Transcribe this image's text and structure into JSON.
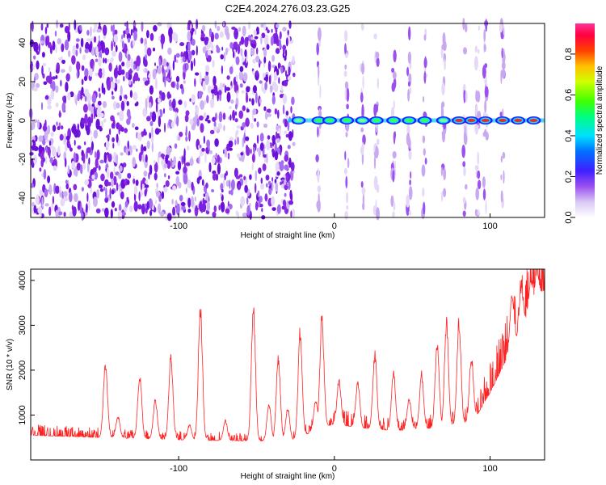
{
  "page_title": "C2E4.2024.276.03.23.G25",
  "chart_data": [
    {
      "type": "heatmap",
      "title": "C2E4.2024.276.03.23.G25",
      "xlabel": "Height of straight line (km)",
      "ylabel": "Frequency (Hz)",
      "xlim": [
        -195,
        135
      ],
      "ylim": [
        -50,
        50
      ],
      "x_ticks": [
        -100,
        0,
        100
      ],
      "x_tick_labels": [
        "-100",
        "0",
        "100"
      ],
      "y_ticks": [
        -40,
        -20,
        0,
        20,
        40
      ],
      "y_tick_labels": [
        "-40",
        "-20",
        "0",
        "20",
        "40"
      ],
      "colorbar": {
        "label": "Normalized spectral amplitude",
        "range": [
          0.0,
          0.95
        ],
        "ticks": [
          0.0,
          0.2,
          0.4,
          0.6,
          0.8
        ],
        "tick_labels": [
          "0.0",
          "0.2",
          "0.4",
          "0.6",
          "0.8"
        ],
        "colors": [
          "#ffffff",
          "#c8a8f0",
          "#8a2be2",
          "#2020ff",
          "#00e0ff",
          "#00ff40",
          "#ffff00",
          "#ff8000",
          "#ff0000",
          "#ff3399"
        ]
      },
      "noise_region_x": [
        -195,
        -30
      ],
      "signal_track": {
        "frequency": 0,
        "x_range": [
          -30,
          135
        ],
        "blobs": [
          {
            "x": -23,
            "amplitude": 0.35
          },
          {
            "x": -10,
            "amplitude": 0.5
          },
          {
            "x": -3,
            "amplitude": 0.6
          },
          {
            "x": 8,
            "amplitude": 0.55
          },
          {
            "x": 18,
            "amplitude": 0.45
          },
          {
            "x": 27,
            "amplitude": 0.5
          },
          {
            "x": 38,
            "amplitude": 0.5
          },
          {
            "x": 48,
            "amplitude": 0.55
          },
          {
            "x": 58,
            "amplitude": 0.55
          },
          {
            "x": 70,
            "amplitude": 0.45
          },
          {
            "x": 80,
            "amplitude": 0.85
          },
          {
            "x": 88,
            "amplitude": 0.85
          },
          {
            "x": 97,
            "amplitude": 0.85
          },
          {
            "x": 108,
            "amplitude": 0.8
          },
          {
            "x": 118,
            "amplitude": 0.85
          },
          {
            "x": 128,
            "amplitude": 0.85
          }
        ]
      },
      "vertical_stripes_x": [
        -10,
        8,
        18,
        27,
        38,
        48,
        58,
        70,
        84,
        92,
        97,
        108
      ]
    },
    {
      "type": "line",
      "xlabel": "Height of straight line (km)",
      "ylabel": "SNR (10 * v/v)",
      "xlim": [
        -195,
        135
      ],
      "ylim": [
        0,
        4250
      ],
      "x_ticks": [
        -100,
        0,
        100
      ],
      "x_tick_labels": [
        "-100",
        "0",
        "100"
      ],
      "y_ticks": [
        1000,
        2000,
        3000,
        4000
      ],
      "y_tick_labels": [
        "1000",
        "2000",
        "3000",
        "4000"
      ],
      "color": "#ff2020",
      "baseline": [
        [
          -195,
          550
        ],
        [
          -150,
          500
        ],
        [
          -100,
          450
        ],
        [
          -50,
          420
        ],
        [
          -25,
          450
        ],
        [
          -10,
          700
        ],
        [
          0,
          800
        ],
        [
          20,
          700
        ],
        [
          40,
          650
        ],
        [
          60,
          700
        ],
        [
          80,
          750
        ],
        [
          90,
          900
        ],
        [
          100,
          1500
        ],
        [
          110,
          2200
        ],
        [
          120,
          2900
        ],
        [
          130,
          3600
        ],
        [
          135,
          3800
        ]
      ],
      "peaks": [
        {
          "x": -147,
          "y": 2250
        },
        {
          "x": -139,
          "y": 1000
        },
        {
          "x": -125,
          "y": 1950
        },
        {
          "x": -115,
          "y": 1400
        },
        {
          "x": -105,
          "y": 2400
        },
        {
          "x": -93,
          "y": 800
        },
        {
          "x": -86,
          "y": 3600
        },
        {
          "x": -70,
          "y": 900
        },
        {
          "x": -52,
          "y": 3650
        },
        {
          "x": -42,
          "y": 1300
        },
        {
          "x": -36,
          "y": 2400
        },
        {
          "x": -30,
          "y": 1200
        },
        {
          "x": -22,
          "y": 3000
        },
        {
          "x": -12,
          "y": 1350
        },
        {
          "x": -8,
          "y": 3300
        },
        {
          "x": 3,
          "y": 1850
        },
        {
          "x": 15,
          "y": 1800
        },
        {
          "x": 26,
          "y": 2450
        },
        {
          "x": 38,
          "y": 2000
        },
        {
          "x": 48,
          "y": 1400
        },
        {
          "x": 56,
          "y": 2000
        },
        {
          "x": 66,
          "y": 2700
        },
        {
          "x": 72,
          "y": 3200
        },
        {
          "x": 80,
          "y": 3250
        },
        {
          "x": 88,
          "y": 2350
        },
        {
          "x": 114,
          "y": 3700
        },
        {
          "x": 120,
          "y": 3850
        },
        {
          "x": 126,
          "y": 4000
        },
        {
          "x": 130,
          "y": 4200
        }
      ]
    }
  ]
}
